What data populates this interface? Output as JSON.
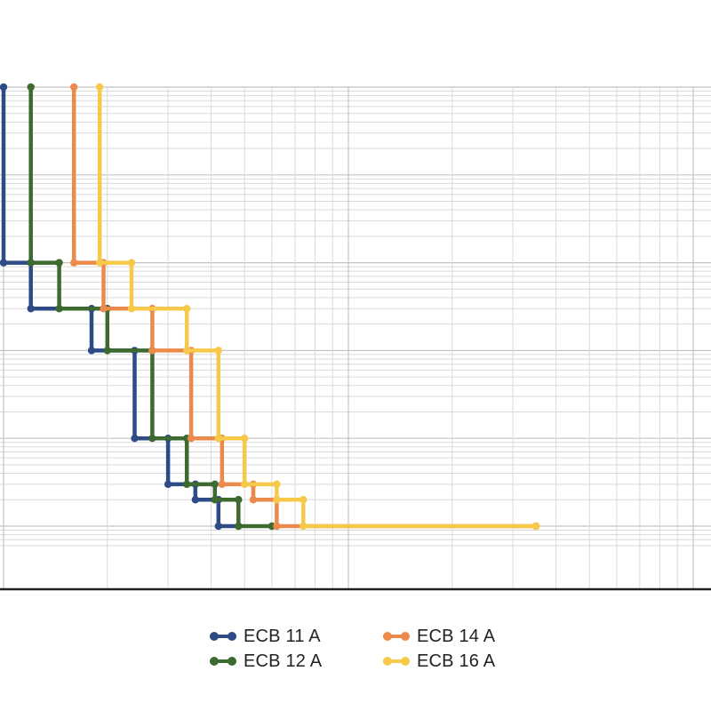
{
  "chart_data": {
    "type": "line",
    "step": true,
    "title": "",
    "xlabel": "",
    "ylabel": "",
    "x_scale": "log",
    "y_scale": "log",
    "grid": true,
    "legend_position": "bottom",
    "series": [
      {
        "name": "ECB 11 A",
        "color": "#2f4b86",
        "points": [
          [
            1.0,
            100000
          ],
          [
            1.0,
            1000
          ],
          [
            1.2,
            1000
          ],
          [
            1.2,
            300
          ],
          [
            1.8,
            300
          ],
          [
            1.8,
            100
          ],
          [
            2.4,
            100
          ],
          [
            2.4,
            10
          ],
          [
            3.0,
            10
          ],
          [
            3.0,
            3
          ],
          [
            3.6,
            3
          ],
          [
            3.6,
            2
          ],
          [
            4.2,
            2
          ],
          [
            4.2,
            1
          ],
          [
            4.8,
            1
          ]
        ]
      },
      {
        "name": "ECB 12 A",
        "color": "#3d6a2f",
        "points": [
          [
            1.2,
            100000
          ],
          [
            1.2,
            1000
          ],
          [
            1.45,
            1000
          ],
          [
            1.45,
            300
          ],
          [
            2.0,
            300
          ],
          [
            2.0,
            100
          ],
          [
            2.7,
            100
          ],
          [
            2.7,
            10
          ],
          [
            3.4,
            10
          ],
          [
            3.4,
            3
          ],
          [
            4.1,
            3
          ],
          [
            4.1,
            2
          ],
          [
            4.8,
            2
          ],
          [
            4.8,
            1
          ],
          [
            6.0,
            1
          ]
        ]
      },
      {
        "name": "ECB 14 A",
        "color": "#ec8a4c",
        "points": [
          [
            1.6,
            100000
          ],
          [
            1.6,
            1000
          ],
          [
            1.95,
            1000
          ],
          [
            1.95,
            300
          ],
          [
            2.7,
            300
          ],
          [
            2.7,
            100
          ],
          [
            3.5,
            100
          ],
          [
            3.5,
            10
          ],
          [
            4.3,
            10
          ],
          [
            4.3,
            3
          ],
          [
            5.3,
            3
          ],
          [
            5.3,
            2
          ],
          [
            6.2,
            2
          ],
          [
            6.2,
            1
          ],
          [
            35,
            1
          ]
        ]
      },
      {
        "name": "ECB 16 A",
        "color": "#f7c94a",
        "points": [
          [
            1.9,
            100000
          ],
          [
            1.9,
            1000
          ],
          [
            2.35,
            1000
          ],
          [
            2.35,
            300
          ],
          [
            3.4,
            300
          ],
          [
            3.4,
            100
          ],
          [
            4.2,
            100
          ],
          [
            4.2,
            10
          ],
          [
            5.0,
            10
          ],
          [
            5.0,
            3
          ],
          [
            6.2,
            3
          ],
          [
            6.2,
            2
          ],
          [
            7.4,
            2
          ],
          [
            7.4,
            1
          ],
          [
            35,
            1
          ]
        ]
      }
    ]
  },
  "legend": {
    "items": [
      {
        "label": "ECB 11 A",
        "color": "#2f4b86"
      },
      {
        "label": "ECB 14 A",
        "color": "#ec8a4c"
      },
      {
        "label": "ECB 12 A",
        "color": "#3d6a2f"
      },
      {
        "label": "ECB 16 A",
        "color": "#f7c94a"
      }
    ]
  }
}
